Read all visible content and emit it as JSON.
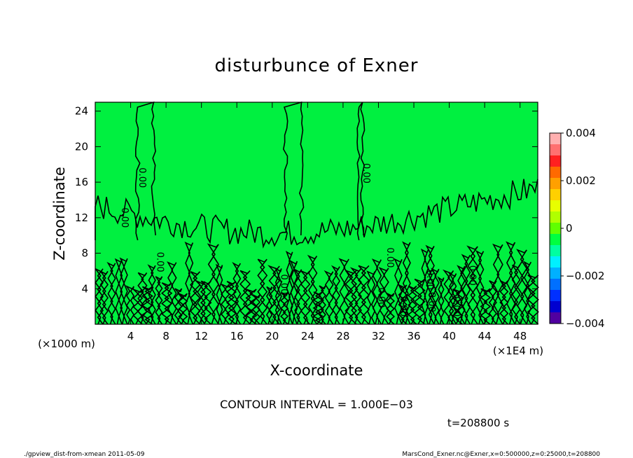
{
  "chart_data": {
    "type": "contour",
    "title": "disturbunce of Exner",
    "xlabel": "X-coordinate",
    "ylabel": "Z-coordinate",
    "x_unit_label": "(×1E4 m)",
    "y_unit_label": "(×1000 m)",
    "xlim": [
      0,
      50
    ],
    "ylim": [
      0,
      25
    ],
    "x_ticks": [
      4,
      8,
      12,
      16,
      20,
      24,
      28,
      32,
      36,
      40,
      44,
      48
    ],
    "y_ticks": [
      4,
      8,
      12,
      16,
      20,
      24
    ],
    "colorbar": {
      "min": -0.004,
      "max": 0.004,
      "labels": [
        "0.004",
        "0.002",
        "0",
        "−0.002",
        "−0.004"
      ],
      "label_values": [
        0.004,
        0.002,
        0,
        -0.002,
        -0.004
      ],
      "colors": [
        "#ffb0b0",
        "#ff7070",
        "#ff2020",
        "#ff6a00",
        "#ffa000",
        "#ffd000",
        "#e8ff00",
        "#b0ff00",
        "#60ff00",
        "#00ff40",
        "#00ffa0",
        "#00f0ff",
        "#00b0ff",
        "#0070ff",
        "#0030ff",
        "#0000d0",
        "#5000a0"
      ]
    },
    "field_color": "#00f040",
    "contour_label": "0.00",
    "contour_interval_text": "CONTOUR INTERVAL = 1.000E−03",
    "time_text": "t=208800 s",
    "footer_left": "./gpview_dist-from-xmean  2011-05-09",
    "footer_right": "MarsCond_Exner.nc@Exner,x=0:500000,z=0:25000,t=208800"
  }
}
